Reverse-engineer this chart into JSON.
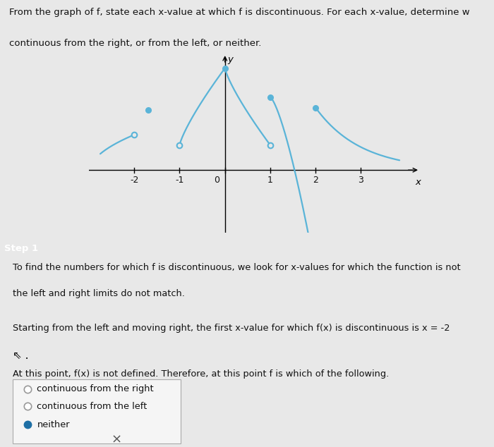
{
  "background_color": "#e8e8e8",
  "graph_bg": "#e0e0e8",
  "curve_color": "#5ab4d8",
  "text_color": "#111111",
  "step_bar_color": "#1e6fa5",
  "step_text_color": "#ffffff",
  "title_line1": "From the graph of f, state each x-value at which f is discontinuous. For each x-value, determine w",
  "title_line2": "continuous from the right, or from the left, or neither.",
  "step1_label": "Step 1",
  "para1_line1": "To find the numbers for which f is discontinuous, we look for x-values for which the function is not",
  "para1_line2": "the left and right limits do not match.",
  "para2_main": "Starting from the left and moving right, the first x-value for which f(x) is discontinuous is x = -2",
  "para3": "At this point, f(x) is not defined. Therefore, at this point f is which of the following.",
  "radio_labels": [
    "continuous from the right",
    "continuous from the left",
    "neither"
  ],
  "selected_radio": 2,
  "xmin": -3.0,
  "xmax": 4.3,
  "ymin": -1.5,
  "ymax": 2.8,
  "axis_y_label": "y",
  "axis_x_label": "x",
  "x_ticks": [
    -2,
    -1,
    0,
    1,
    2,
    3
  ],
  "line_width": 1.6,
  "dot_size": 5.5
}
